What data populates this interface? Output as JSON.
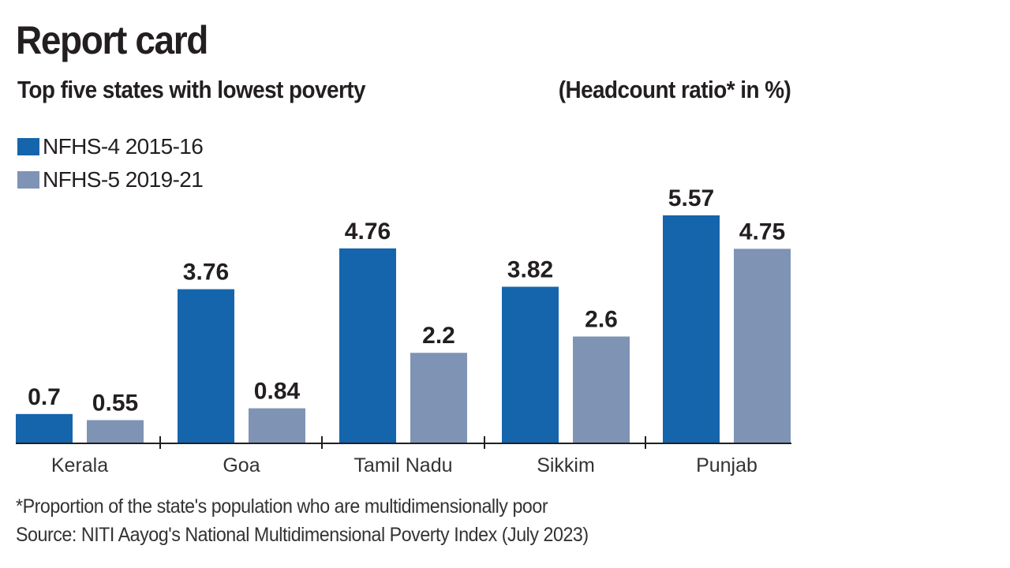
{
  "chart_data": {
    "type": "bar",
    "title": "Report card",
    "subtitle": "Top five states with lowest poverty",
    "unit_label": "(Headcount ratio* in %)",
    "categories": [
      "Kerala",
      "Goa",
      "Tamil Nadu",
      "Sikkim",
      "Punjab"
    ],
    "series": [
      {
        "name": "NFHS-4 2015-16",
        "color": "#1565ad",
        "values": [
          0.7,
          3.76,
          4.76,
          3.82,
          5.57
        ],
        "labels": [
          "0.7",
          "3.76",
          "4.76",
          "3.82",
          "5.57"
        ]
      },
      {
        "name": "NFHS-5 2019-21",
        "color": "#7f93b5",
        "values": [
          0.55,
          0.84,
          2.2,
          2.6,
          4.75
        ],
        "labels": [
          "0.55",
          "0.84",
          "2.2",
          "2.6",
          "4.75"
        ]
      }
    ],
    "legend_position": "top-left",
    "grid": false,
    "ylim": [
      0,
      5.57
    ]
  },
  "footnote": "*Proportion of the state's population who are multidimensionally poor",
  "source": "Source: NITI Aayog's National Multidimensional Poverty Index (July 2023)"
}
